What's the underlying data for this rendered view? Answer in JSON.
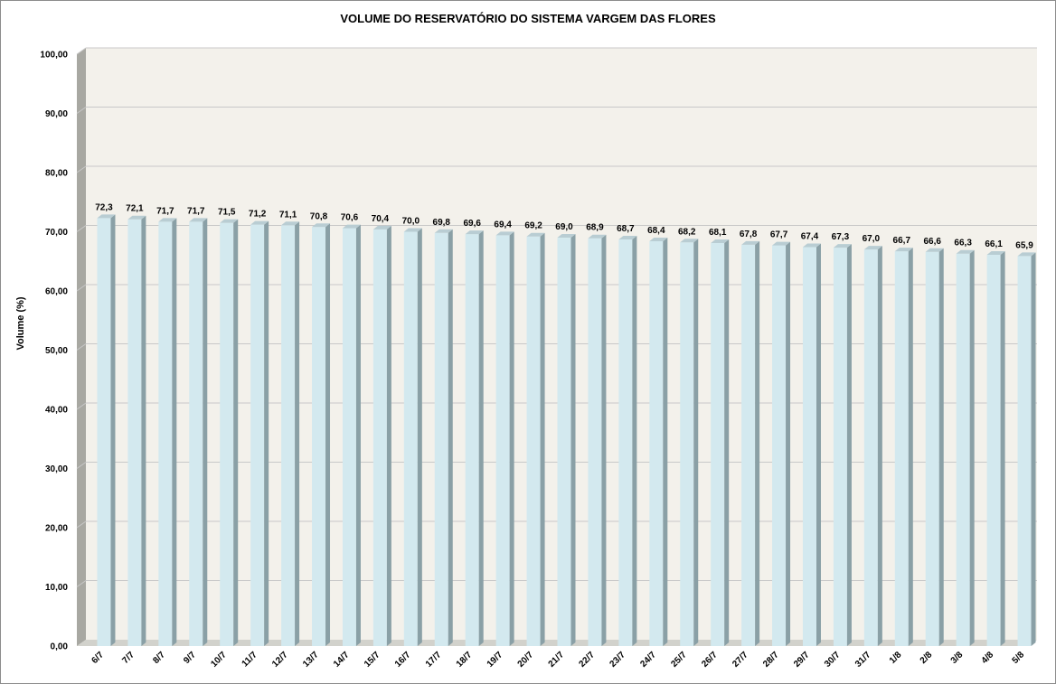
{
  "chart_data": {
    "type": "bar",
    "title": "VOLUME DO RESERVATÓRIO DO SISTEMA VARGEM DAS FLORES",
    "xlabel": "",
    "ylabel": "Volume (%)",
    "ylim": [
      0,
      100
    ],
    "yticks": [
      "0,00",
      "10,00",
      "20,00",
      "30,00",
      "40,00",
      "50,00",
      "60,00",
      "70,00",
      "80,00",
      "90,00",
      "100,00"
    ],
    "grid": true,
    "legend": "none",
    "categories": [
      "6/7",
      "7/7",
      "8/7",
      "9/7",
      "10/7",
      "11/7",
      "12/7",
      "13/7",
      "14/7",
      "15/7",
      "16/7",
      "17/7",
      "18/7",
      "19/7",
      "20/7",
      "21/7",
      "22/7",
      "23/7",
      "24/7",
      "25/7",
      "26/7",
      "27/7",
      "28/7",
      "29/7",
      "30/7",
      "31/7",
      "1/8",
      "2/8",
      "3/8",
      "4/8",
      "5/8"
    ],
    "values": [
      72.3,
      72.1,
      71.7,
      71.7,
      71.5,
      71.2,
      71.1,
      70.8,
      70.6,
      70.4,
      70.0,
      69.8,
      69.6,
      69.4,
      69.2,
      69.0,
      68.9,
      68.7,
      68.4,
      68.2,
      68.1,
      67.8,
      67.7,
      67.4,
      67.3,
      67.0,
      66.7,
      66.6,
      66.3,
      66.1,
      65.9
    ],
    "value_labels": [
      "72,3",
      "72,1",
      "71,7",
      "71,7",
      "71,5",
      "71,2",
      "71,1",
      "70,8",
      "70,6",
      "70,4",
      "70,0",
      "69,8",
      "69,6",
      "69,4",
      "69,2",
      "69,0",
      "68,9",
      "68,7",
      "68,4",
      "68,2",
      "68,1",
      "67,8",
      "67,7",
      "67,4",
      "67,3",
      "67,0",
      "66,7",
      "66,6",
      "66,3",
      "66,1",
      "65,9"
    ],
    "colors": {
      "bar_front": "#d3e9ef",
      "bar_side": "#8aa0a6",
      "bar_top": "#b9cdd3",
      "plot_bg": "#f3f1eb",
      "wall_side": "#a8a8a2",
      "floor": "#d2d2cc",
      "gridline": "#c8c8c8"
    }
  }
}
